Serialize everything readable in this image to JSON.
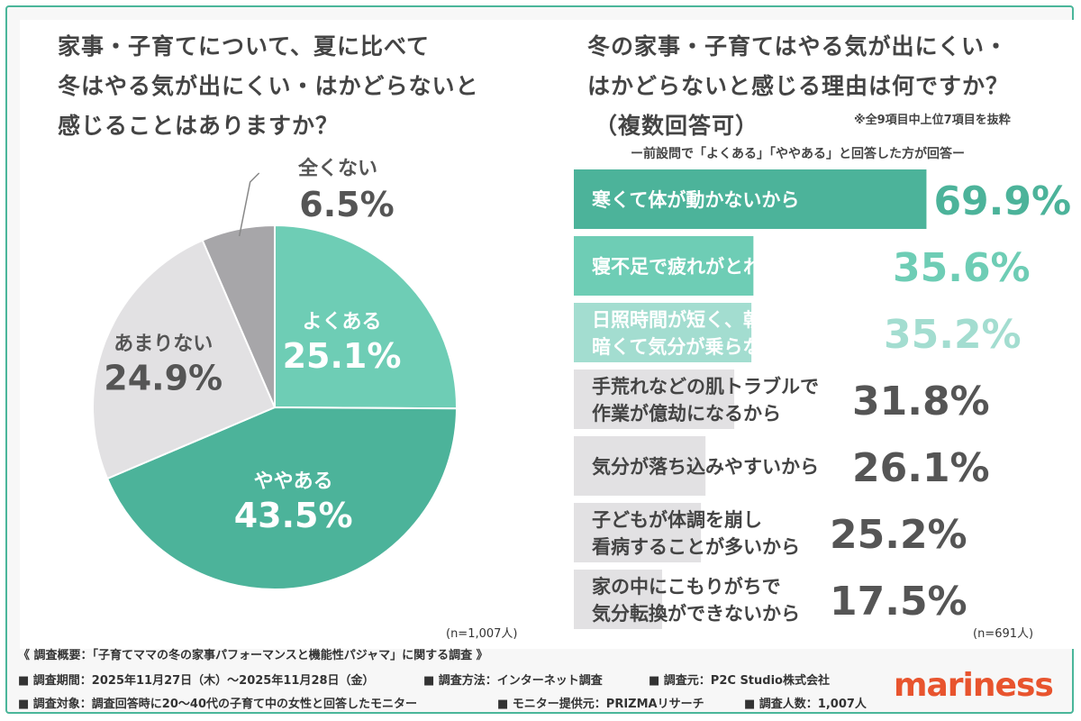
{
  "colors": {
    "dark_green": "#4cb39a",
    "mid_green": "#6ecdb5",
    "light_green": "#a3ddd0",
    "light_gray": "#e2e1e3",
    "gray": "#a7a6a9",
    "text": "#444444",
    "logo": "#e8542e"
  },
  "left": {
    "question": [
      "家事・子育てについて、夏に比べて",
      "冬はやる気が出にくい・はかどらないと",
      "感じることはありますか？"
    ],
    "n": "(n=1,007人)"
  },
  "right": {
    "question": [
      "冬の家事・子育てはやる気が出にくい・",
      "はかどらないと感じる理由は何ですか？",
      "（複数回答可）"
    ],
    "note": "※全9項目中上位7項目を抜粋",
    "subtitle": "ー前設問で「よくある」「ややある」と回答した方が回答ー",
    "n": "(n=691人)"
  },
  "chart_data": [
    {
      "type": "pie",
      "slices": [
        {
          "label": "よくある",
          "value": 25.1,
          "value_text": "25.1%"
        },
        {
          "label": "ややある",
          "value": 43.5,
          "value_text": "43.5%"
        },
        {
          "label": "あまりない",
          "value": 24.9,
          "value_text": "24.9%"
        },
        {
          "label": "全くない",
          "value": 6.5,
          "value_text": "6.5%"
        }
      ]
    },
    {
      "type": "bar",
      "orientation": "horizontal",
      "xlim": [
        0,
        100
      ],
      "bars": [
        {
          "lines": [
            "寒くて体が動かないから"
          ],
          "value": 69.9,
          "value_text": "69.9%"
        },
        {
          "lines": [
            "寝不足で疲れがとれないから"
          ],
          "value": 35.6,
          "value_text": "35.6%"
        },
        {
          "lines": [
            "日照時間が短く、朝や夕方が",
            "暗くて気分が乗らないから"
          ],
          "value": 35.2,
          "value_text": "35.2%"
        },
        {
          "lines": [
            "手荒れなどの肌トラブルで",
            "作業が億劫になるから"
          ],
          "value": 31.8,
          "value_text": "31.8%"
        },
        {
          "lines": [
            "気分が落ち込みやすいから"
          ],
          "value": 26.1,
          "value_text": "26.1%"
        },
        {
          "lines": [
            "子どもが体調を崩し",
            "看病することが多いから"
          ],
          "value": 25.2,
          "value_text": "25.2%"
        },
        {
          "lines": [
            "家の中にこもりがちで",
            "気分転換ができないから"
          ],
          "value": 17.5,
          "value_text": "17.5%"
        }
      ]
    }
  ],
  "footer": {
    "line1": "《 調査概要：「子育てママの冬の家事パフォーマンスと機能性パジャマ」に関する調査 》",
    "line2": [
      "■ 調査期間：2025年11月27日（木）〜2025年11月28日（金）",
      "■ 調査方法：インターネット調査",
      "■ 調査元：P2C Studio株式会社"
    ],
    "line3": [
      "■ 調査対象：調査回答時に20〜40代の子育て中の女性と回答したモニター",
      "■ モニター提供元：PRIZMAリサーチ",
      "■ 調査人数：1,007人"
    ],
    "logo": "mariness"
  }
}
